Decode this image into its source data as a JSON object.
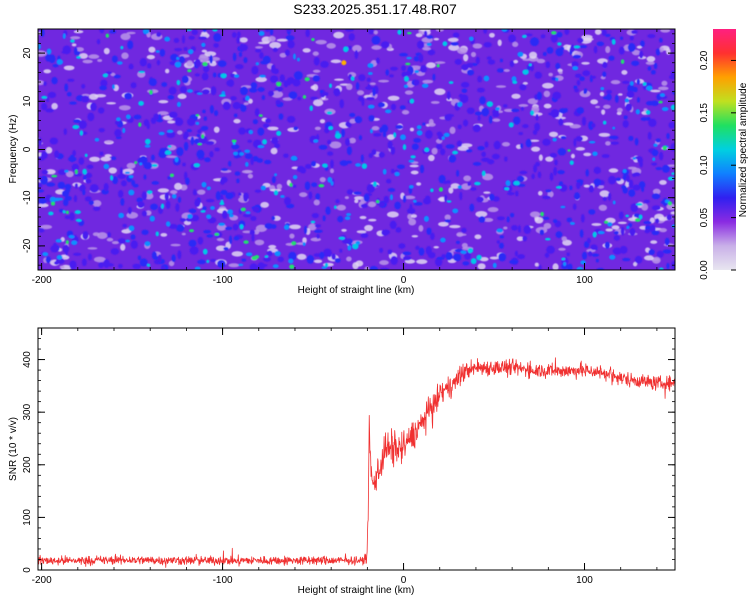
{
  "title": "S233.2025.351.17.48.R07",
  "colors": {
    "series": "#f03030",
    "spec_bg": "#6a1fe0",
    "frame": "#000000"
  },
  "colorbar_stops": [
    "#e8e6f0",
    "#c9b0e8",
    "#8a2be2",
    "#3020f0",
    "#1080ff",
    "#00d0e0",
    "#20e060",
    "#c0e020",
    "#ffa000",
    "#ff3030",
    "#ff2080"
  ],
  "chart_data": [
    {
      "id": "spectrogram",
      "type": "heatmap",
      "xlabel": "Height of straight line (km)",
      "ylabel": "Frequency (Hz)",
      "xlim": [
        -202,
        150
      ],
      "ylim": [
        -25,
        25
      ],
      "xticks": [
        -200,
        -100,
        0,
        100
      ],
      "xtick_labels": [
        "-200",
        "-100",
        "0",
        "100"
      ],
      "yticks": [
        -20,
        -10,
        0,
        10,
        20
      ],
      "ytick_labels": [
        "-20",
        "-10",
        "0",
        "10",
        "20"
      ],
      "colorbar": {
        "label": "Normalized spectral amplitude",
        "range": [
          0,
          0.23
        ],
        "ticks": [
          0,
          0.05,
          0.1,
          0.15,
          0.2
        ],
        "tick_labels": [
          "0.00",
          "0.05",
          "0.10",
          "0.15",
          "0.20"
        ]
      },
      "note": "speckle noise: mostly 0.02-0.06 amplitude, sparse peaks up to ~0.15"
    },
    {
      "id": "snr",
      "type": "line",
      "xlabel": "Height of straight line (km)",
      "ylabel": "SNR (10 * v/v)",
      "xlim": [
        -202,
        150
      ],
      "ylim": [
        0,
        460
      ],
      "xticks": [
        -200,
        -100,
        0,
        100
      ],
      "xtick_labels": [
        "-200",
        "-100",
        "0",
        "100"
      ],
      "yticks": [
        0,
        100,
        200,
        300,
        400
      ],
      "ytick_labels": [
        "0",
        "100",
        "200",
        "300",
        "400"
      ],
      "series": [
        {
          "name": "SNR",
          "x": [
            -202,
            -180,
            -150,
            -120,
            -90,
            -60,
            -40,
            -22,
            -20,
            -19,
            -18,
            -17,
            -15,
            -12,
            -10,
            -5,
            0,
            5,
            10,
            15,
            20,
            25,
            30,
            35,
            40,
            50,
            60,
            70,
            80,
            90,
            100,
            110,
            120,
            130,
            140,
            150
          ],
          "y": [
            18,
            18,
            19,
            18,
            18,
            18,
            18,
            18,
            30,
            250,
            190,
            160,
            180,
            210,
            230,
            230,
            235,
            255,
            280,
            305,
            335,
            345,
            365,
            380,
            385,
            385,
            385,
            380,
            380,
            378,
            380,
            375,
            365,
            360,
            355,
            355
          ],
          "noise_amplitude": [
            12,
            12,
            12,
            12,
            12,
            12,
            12,
            10,
            30,
            80,
            40,
            35,
            45,
            50,
            55,
            50,
            45,
            40,
            40,
            35,
            30,
            30,
            28,
            25,
            25,
            22,
            22,
            20,
            20,
            20,
            20,
            20,
            20,
            20,
            20,
            20
          ]
        }
      ]
    }
  ]
}
